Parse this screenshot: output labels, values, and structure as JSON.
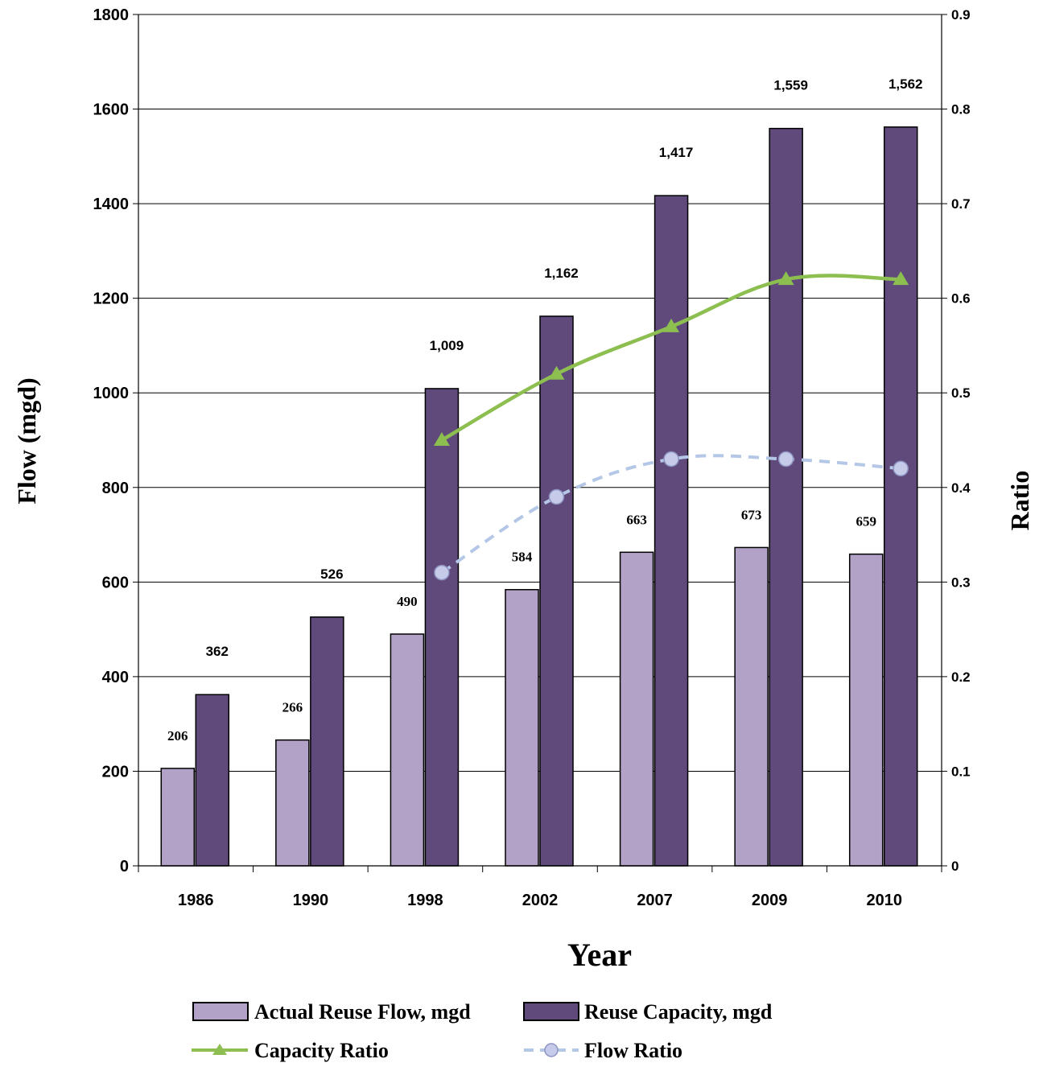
{
  "chart_data": {
    "type": "bar",
    "categories": [
      "1986",
      "1990",
      "1998",
      "2002",
      "2007",
      "2009",
      "2010"
    ],
    "series": [
      {
        "name": "Actual Reuse Flow, mgd",
        "kind": "bar",
        "axis": "left",
        "color": "#b3a2c7",
        "values": [
          206,
          266,
          490,
          584,
          663,
          673,
          659
        ],
        "labels": [
          "206",
          "266",
          "490",
          "584",
          "663",
          "673",
          "659"
        ]
      },
      {
        "name": "Reuse Capacity, mgd",
        "kind": "bar",
        "axis": "left",
        "color": "#604a7b",
        "values": [
          362,
          526,
          1009,
          1162,
          1417,
          1559,
          1562
        ],
        "labels": [
          "362",
          "526",
          "1,009",
          "1,162",
          "1,417",
          "1,559",
          "1,562"
        ]
      },
      {
        "name": "Capacity Ratio",
        "kind": "line",
        "axis": "right",
        "color": "#8cbe50",
        "values": [
          null,
          null,
          0.45,
          0.52,
          0.57,
          0.62,
          0.62
        ]
      },
      {
        "name": "Flow Ratio",
        "kind": "line",
        "axis": "right",
        "color": "#b4c7e7",
        "dashed": true,
        "values": [
          null,
          null,
          0.31,
          0.39,
          0.43,
          0.43,
          0.42
        ]
      }
    ],
    "xlabel": "Year",
    "ylabel": "Flow (mgd)",
    "y2label": "Ratio",
    "ylim": [
      0,
      1800
    ],
    "yticks": [
      "0",
      "200",
      "400",
      "600",
      "800",
      "1000",
      "1200",
      "1400",
      "1600",
      "1800"
    ],
    "y2lim": [
      0,
      0.9
    ],
    "y2ticks": [
      "0",
      "0.1",
      "0.2",
      "0.3",
      "0.4",
      "0.5",
      "0.6",
      "0.7",
      "0.8",
      "0.9"
    ],
    "grid": true,
    "legend_position": "bottom"
  }
}
